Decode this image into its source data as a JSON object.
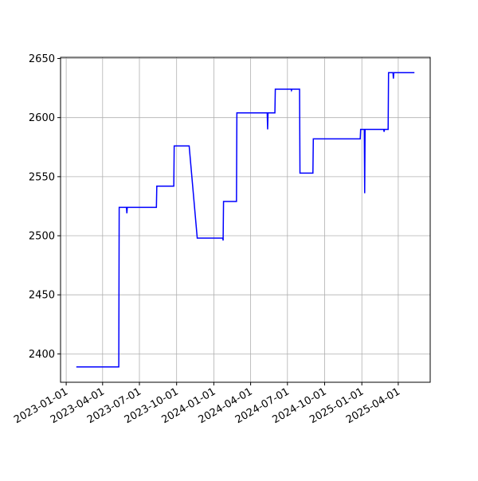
{
  "chart_data": {
    "type": "line",
    "grid": true,
    "x": [
      "2023-01-26",
      "2023-05-11",
      "2023-05-12",
      "2023-05-30",
      "2023-05-31",
      "2023-06-01",
      "2023-08-12",
      "2023-08-13",
      "2023-09-24",
      "2023-09-25",
      "2023-11-01",
      "2023-11-21",
      "2024-01-23",
      "2024-01-24",
      "2024-01-25",
      "2024-02-26",
      "2024-02-27",
      "2024-05-12",
      "2024-05-13",
      "2024-05-14",
      "2024-05-31",
      "2024-06-01",
      "2024-07-10",
      "2024-07-11",
      "2024-07-12",
      "2024-07-31",
      "2024-08-01",
      "2024-09-02",
      "2024-09-03",
      "2024-12-28",
      "2024-12-29",
      "2025-01-07",
      "2025-01-08",
      "2025-01-09",
      "2025-02-24",
      "2025-02-25",
      "2025-02-26",
      "2025-03-07",
      "2025-03-08",
      "2025-03-19",
      "2025-03-20",
      "2025-03-21",
      "2025-05-11"
    ],
    "series": [
      {
        "color": "blue",
        "values": [
          2389,
          2389,
          2524,
          2524,
          2519,
          2524,
          2524,
          2542,
          2542,
          2576,
          2576,
          2498,
          2498,
          2496,
          2529,
          2529,
          2604,
          2604,
          2590,
          2604,
          2604,
          2624,
          2624,
          2623,
          2624,
          2624,
          2553,
          2553,
          2582,
          2582,
          2590,
          2590,
          2536,
          2590,
          2590,
          2588,
          2590,
          2590,
          2638,
          2638,
          2633,
          2638,
          2638
        ]
      }
    ],
    "xlim": [
      "2022-12-18",
      "2025-06-19"
    ],
    "xticks": [
      "2023-01-01",
      "2023-04-01",
      "2023-07-01",
      "2023-10-01",
      "2024-01-01",
      "2024-04-01",
      "2024-07-01",
      "2024-10-01",
      "2025-01-01",
      "2025-04-01"
    ],
    "ylim": [
      2376,
      2651
    ],
    "yticks": [
      2400,
      2450,
      2500,
      2550,
      2600,
      2650
    ]
  }
}
